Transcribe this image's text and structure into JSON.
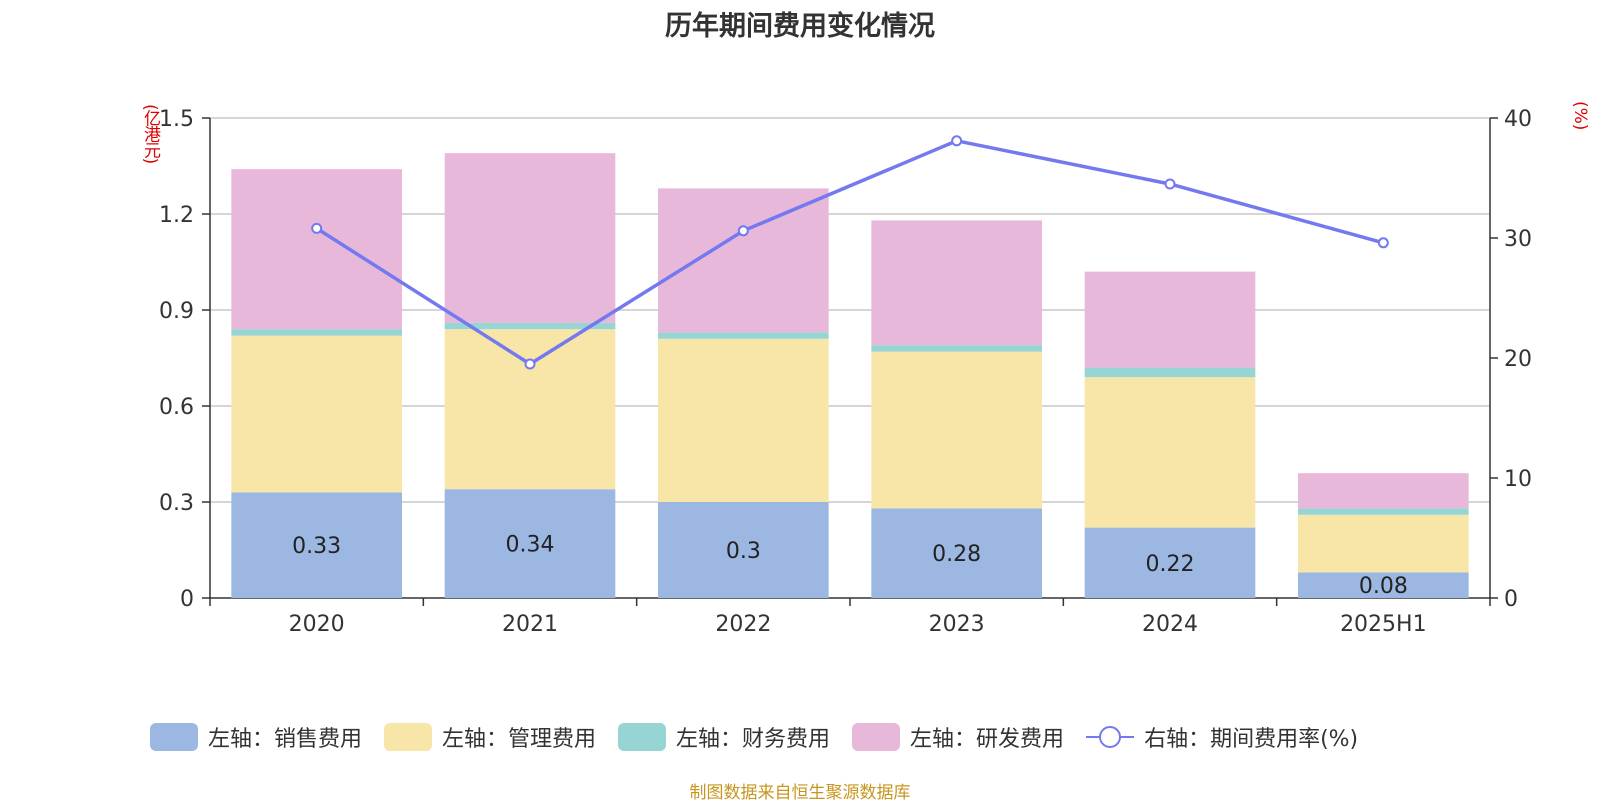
{
  "chart_data": {
    "type": "bar",
    "stacked": true,
    "title": "历年期间费用变化情况",
    "left_axis_unit": "(亿港元)",
    "right_axis_unit": "(%)",
    "categories": [
      "2020",
      "2021",
      "2022",
      "2023",
      "2024",
      "2025H1"
    ],
    "left_ylim": [
      0,
      1.5
    ],
    "left_ticks": [
      0,
      0.3,
      0.6,
      0.9,
      1.2,
      1.5
    ],
    "left_tick_labels": [
      "0",
      "0.3",
      "0.6",
      "0.9",
      "1.2",
      "1.5"
    ],
    "right_ylim": [
      0,
      40
    ],
    "right_ticks": [
      0,
      10,
      20,
      30,
      40
    ],
    "right_tick_labels": [
      "0",
      "10",
      "20",
      "30",
      "40"
    ],
    "series": [
      {
        "name": "左轴：销售费用",
        "axis": "left",
        "color": "#9cb8e2",
        "values": [
          0.33,
          0.34,
          0.3,
          0.28,
          0.22,
          0.08
        ],
        "labels": [
          "0.33",
          "0.34",
          "0.3",
          "0.28",
          "0.22",
          "0.08"
        ]
      },
      {
        "name": "左轴：管理费用",
        "axis": "left",
        "color": "#f7e6a8",
        "values": [
          0.49,
          0.5,
          0.51,
          0.49,
          0.47,
          0.18
        ]
      },
      {
        "name": "左轴：财务费用",
        "axis": "left",
        "color": "#97d4d4",
        "values": [
          0.02,
          0.02,
          0.02,
          0.02,
          0.03,
          0.02
        ]
      },
      {
        "name": "左轴：研发费用",
        "axis": "left",
        "color": "#e8b8da",
        "values": [
          0.5,
          0.53,
          0.45,
          0.39,
          0.3,
          0.11
        ]
      },
      {
        "name": "右轴：期间费用率(%)",
        "axis": "right",
        "type": "line",
        "color": "#7479ef",
        "values": [
          30.8,
          19.5,
          30.6,
          38.1,
          34.5,
          29.6
        ]
      }
    ],
    "source": "制图数据来自恒生聚源数据库"
  }
}
